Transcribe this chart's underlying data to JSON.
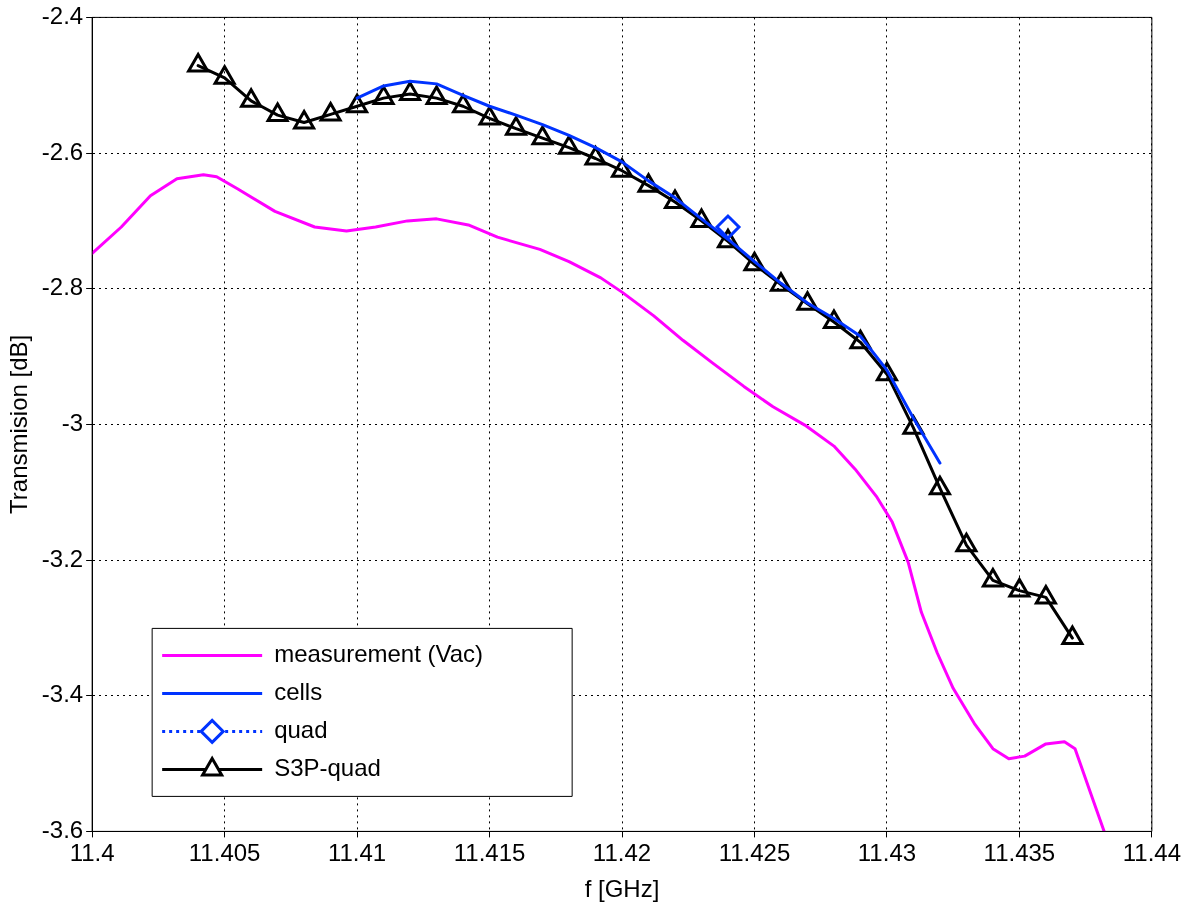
{
  "chart_data": {
    "type": "line",
    "xlabel": "f [GHz]",
    "ylabel": "Transmision [dB]",
    "xlim": [
      11.4,
      11.44
    ],
    "xticks": [
      11.4,
      11.405,
      11.41,
      11.415,
      11.42,
      11.425,
      11.43,
      11.435,
      11.44
    ],
    "ylim": [
      -3.6,
      -2.4
    ],
    "yticks": [
      -3.6,
      -3.4,
      -3.2,
      -3,
      -2.8,
      -2.6,
      -2.4
    ],
    "grid": true,
    "legend": "bottom left",
    "series": [
      {
        "name": "measurement (Vac)",
        "color": "#ff00ff",
        "marker": "none",
        "line_style": "solid",
        "x": [
          11.4,
          11.4011,
          11.4022,
          11.4032,
          11.4042,
          11.4047,
          11.4055,
          11.4069,
          11.4084,
          11.4096,
          11.4107,
          11.4119,
          11.413,
          11.4142,
          11.4153,
          11.4169,
          11.418,
          11.4192,
          11.42,
          11.4212,
          11.4223,
          11.4234,
          11.4246,
          11.4257,
          11.4269,
          11.428,
          11.4288,
          11.4296,
          11.4302,
          11.4308,
          11.4313,
          11.4319,
          11.4325,
          11.4333,
          11.434,
          11.4346,
          11.4352,
          11.436,
          11.4367,
          11.4371,
          11.4377,
          11.4382
        ],
        "values": [
          -2.748,
          -2.709,
          -2.663,
          -2.638,
          -2.632,
          -2.635,
          -2.653,
          -2.686,
          -2.709,
          -2.715,
          -2.709,
          -2.7,
          -2.697,
          -2.706,
          -2.724,
          -2.742,
          -2.76,
          -2.784,
          -2.805,
          -2.84,
          -2.876,
          -2.909,
          -2.944,
          -2.974,
          -3.001,
          -3.032,
          -3.066,
          -3.106,
          -3.144,
          -3.203,
          -3.277,
          -3.337,
          -3.389,
          -3.441,
          -3.478,
          -3.493,
          -3.489,
          -3.471,
          -3.468,
          -3.478,
          -3.545,
          -3.6
        ]
      },
      {
        "name": "cells",
        "color": "#0033ff",
        "marker": "none",
        "line_style": "solid",
        "x": [
          11.41,
          11.411,
          11.412,
          11.413,
          11.414,
          11.415,
          11.416,
          11.417,
          11.418,
          11.419,
          11.42,
          11.421,
          11.422,
          11.423,
          11.424,
          11.425,
          11.426,
          11.427,
          11.428,
          11.429,
          11.43,
          11.431,
          11.432
        ],
        "values": [
          -2.519,
          -2.501,
          -2.494,
          -2.498,
          -2.515,
          -2.531,
          -2.544,
          -2.558,
          -2.574,
          -2.592,
          -2.613,
          -2.641,
          -2.666,
          -2.697,
          -2.727,
          -2.76,
          -2.792,
          -2.821,
          -2.844,
          -2.87,
          -2.92,
          -2.991,
          -3.057
        ]
      },
      {
        "name": "quad",
        "color": "#0033ff",
        "marker": "diamond",
        "line_style": "dotted",
        "x": [
          11.424
        ],
        "values": [
          -2.709
        ]
      },
      {
        "name": "S3P-quad",
        "color": "#000000",
        "marker": "triangle",
        "line_style": "solid",
        "x": [
          11.404,
          11.405,
          11.406,
          11.407,
          11.408,
          11.409,
          11.41,
          11.411,
          11.412,
          11.413,
          11.414,
          11.415,
          11.416,
          11.417,
          11.418,
          11.419,
          11.42,
          11.421,
          11.422,
          11.423,
          11.424,
          11.425,
          11.426,
          11.427,
          11.428,
          11.429,
          11.43,
          11.431,
          11.432,
          11.433,
          11.434,
          11.435,
          11.436,
          11.437
        ],
        "values": [
          -2.471,
          -2.489,
          -2.523,
          -2.544,
          -2.555,
          -2.543,
          -2.531,
          -2.519,
          -2.513,
          -2.519,
          -2.531,
          -2.549,
          -2.564,
          -2.578,
          -2.592,
          -2.608,
          -2.626,
          -2.648,
          -2.672,
          -2.7,
          -2.73,
          -2.764,
          -2.794,
          -2.822,
          -2.849,
          -2.879,
          -2.926,
          -3.005,
          -3.094,
          -3.178,
          -3.23,
          -3.245,
          -3.255,
          -3.315
        ]
      }
    ]
  }
}
